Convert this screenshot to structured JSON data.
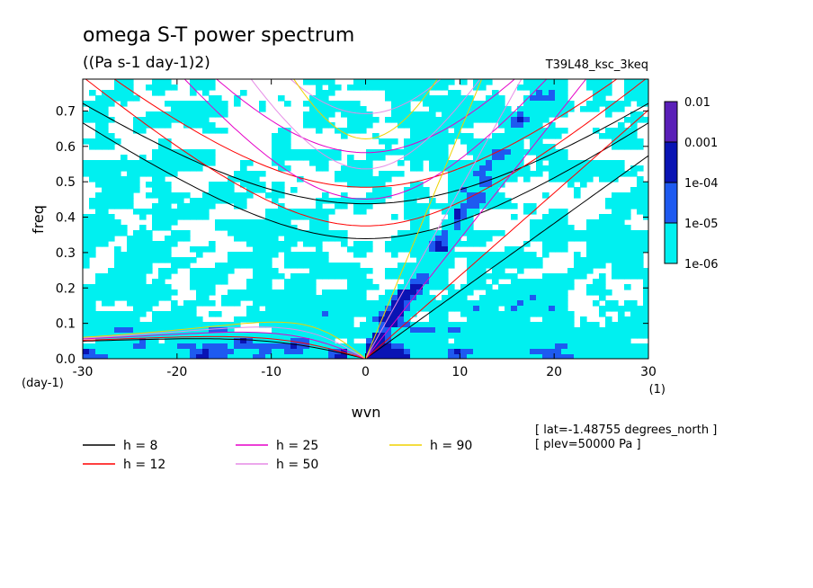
{
  "chart_data": {
    "type": "heatmap",
    "title": "omega S-T power spectrum",
    "subtitle": "((Pa s-1 day-1)2)",
    "run_label": "T39L48_ksc_3keq",
    "xlabel": "wvn",
    "ylabel": "freq",
    "x_unit": "(1)",
    "y_unit": "(day-1)",
    "xlim": [
      -30,
      30
    ],
    "ylim": [
      0,
      0.79
    ],
    "x_ticks": [
      "-30",
      "-20",
      "-10",
      "0",
      "10",
      "20",
      "30"
    ],
    "y_ticks": [
      "0.0",
      "0.1",
      "0.2",
      "0.3",
      "0.4",
      "0.5",
      "0.6",
      "0.7"
    ],
    "grid": false,
    "colorbar": {
      "levels": [
        "0.01",
        "0.001",
        "1e-04",
        "1e-05",
        "1e-06"
      ],
      "colors": [
        "#5a1fb8",
        "#0a14b4",
        "#1e5af0",
        "#00f0f0"
      ]
    },
    "dispersion_curves": [
      {
        "name": "h =  8",
        "color": "#000000"
      },
      {
        "name": "h = 12",
        "color": "#ff0000"
      },
      {
        "name": "h = 25",
        "color": "#e600c8"
      },
      {
        "name": "h = 50",
        "color": "#e68ce6"
      },
      {
        "name": "h = 90",
        "color": "#f0d200"
      }
    ],
    "annotations": [
      "[ lat=-1.48755 degrees_north ]",
      "[ plev=50000 Pa ]"
    ]
  }
}
